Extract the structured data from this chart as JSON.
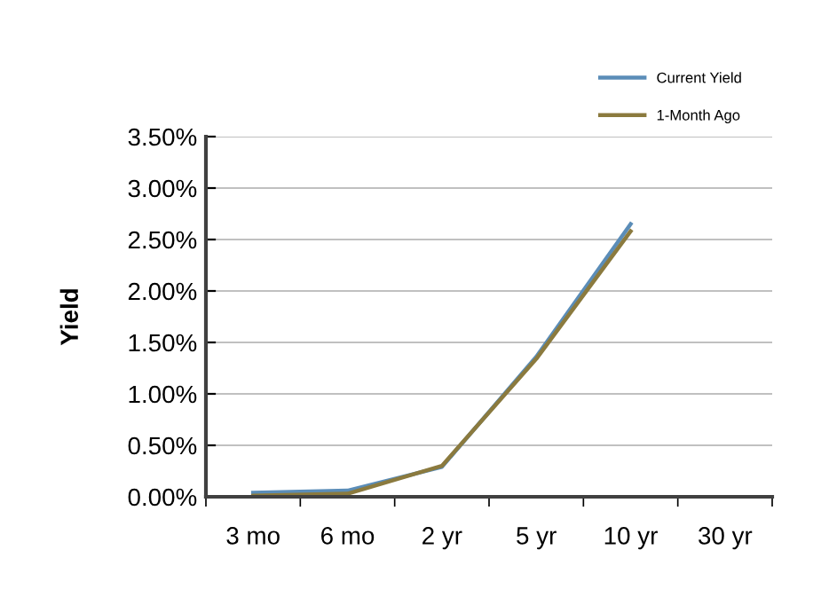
{
  "chart_data": {
    "type": "line",
    "ylabel": "Yield",
    "categories": [
      "3 mo",
      "6 mo",
      "2 yr",
      "5 yr",
      "10 yr",
      "30 yr"
    ],
    "series": [
      {
        "name": "Current Yield",
        "color": "#5b8db8",
        "values": [
          0.04,
          0.06,
          0.29,
          1.36,
          2.65,
          null
        ]
      },
      {
        "name": "1-Month Ago",
        "color": "#8b7a3e",
        "values": [
          0.01,
          0.03,
          0.3,
          1.34,
          2.58,
          null
        ]
      }
    ],
    "ylim": [
      0,
      3.5
    ],
    "yticks": [
      {
        "value": 0,
        "label": "0.00%"
      },
      {
        "value": 0.5,
        "label": "0.50%"
      },
      {
        "value": 1,
        "label": "1.00%"
      },
      {
        "value": 1.5,
        "label": "1.50%"
      },
      {
        "value": 2,
        "label": "2.00%"
      },
      {
        "value": 2.5,
        "label": "2.50%"
      },
      {
        "value": 3,
        "label": "3.00%"
      },
      {
        "value": 3.5,
        "label": "3.50%"
      }
    ],
    "grid": "y",
    "legend": "top right",
    "marker": "none",
    "line_style": "solid"
  }
}
